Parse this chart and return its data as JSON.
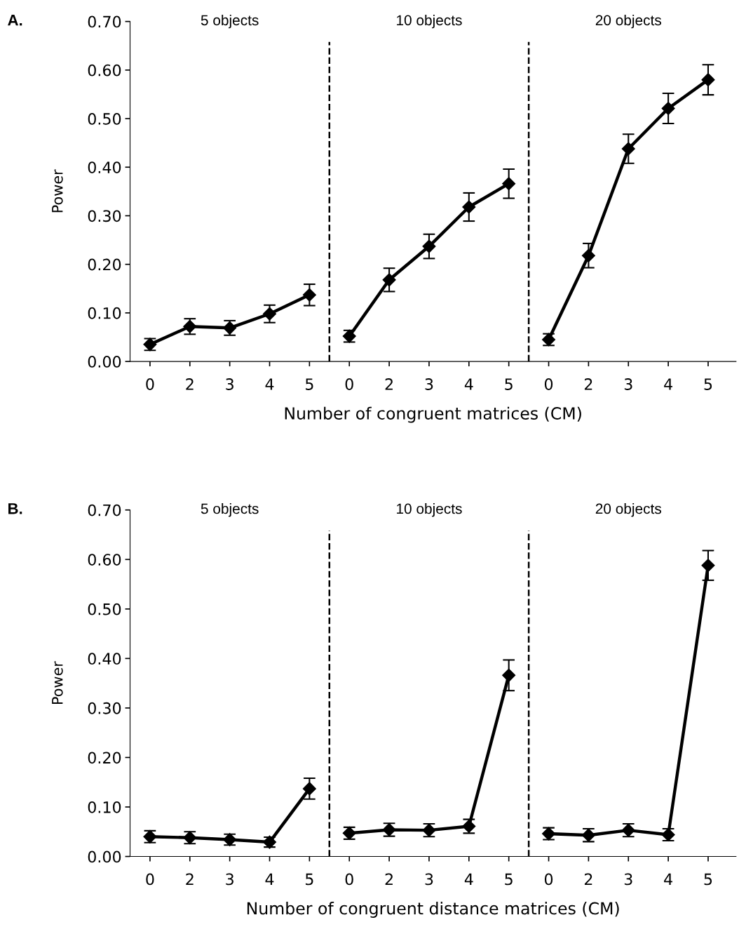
{
  "chart_data": [
    {
      "type": "line",
      "title": "A.",
      "xlabel": "Number of congruent matrices (CM)",
      "ylabel": "Power",
      "categories": [
        "0",
        "2",
        "3",
        "4",
        "5",
        "0",
        "2",
        "3",
        "4",
        "5",
        "0",
        "2",
        "3",
        "4",
        "5"
      ],
      "series": [
        {
          "color": "#000000",
          "values": [
            0.035,
            0.072,
            0.069,
            0.098,
            0.137,
            null,
            null,
            null,
            null,
            null,
            null,
            null,
            null,
            null,
            null
          ],
          "errors": [
            0.012,
            0.016,
            0.015,
            0.018,
            0.022,
            null,
            null,
            null,
            null,
            null,
            null,
            null,
            null,
            null,
            null
          ]
        },
        {
          "color": "#000000",
          "values": [
            null,
            null,
            null,
            null,
            null,
            0.052,
            0.168,
            0.237,
            0.318,
            0.366,
            null,
            null,
            null,
            null,
            null
          ],
          "errors": [
            null,
            null,
            null,
            null,
            null,
            0.012,
            0.024,
            0.025,
            0.029,
            0.03,
            null,
            null,
            null,
            null,
            null
          ]
        },
        {
          "color": "#000000",
          "values": [
            null,
            null,
            null,
            null,
            null,
            null,
            null,
            null,
            null,
            null,
            0.045,
            0.218,
            0.438,
            0.521,
            0.58
          ],
          "errors": [
            null,
            null,
            null,
            null,
            null,
            null,
            null,
            null,
            null,
            null,
            0.012,
            0.025,
            0.03,
            0.031,
            0.031
          ]
        }
      ],
      "annotations": [
        "5 objects",
        "10 objects",
        "20 objects"
      ],
      "ylim": [
        0,
        0.7
      ],
      "yticks": [
        {
          "value": 0,
          "label": "0.00"
        },
        {
          "value": 0.1,
          "label": "0.10"
        },
        {
          "value": 0.2,
          "label": "0.20"
        },
        {
          "value": 0.3,
          "label": "0.30"
        },
        {
          "value": 0.4,
          "label": "0.40"
        },
        {
          "value": 0.5,
          "label": "0.50"
        },
        {
          "value": 0.6,
          "label": "0.60"
        },
        {
          "value": 0.7,
          "label": "0.70"
        }
      ],
      "marker": "diamond",
      "line_style": "solid",
      "grid": false,
      "legend": false
    },
    {
      "type": "line",
      "title": "B.",
      "xlabel": "Number of congruent distance matrices (CM)",
      "ylabel": "Power",
      "categories": [
        "0",
        "2",
        "3",
        "4",
        "5",
        "0",
        "2",
        "3",
        "4",
        "5",
        "0",
        "2",
        "3",
        "4",
        "5"
      ],
      "series": [
        {
          "color": "#000000",
          "values": [
            0.04,
            0.038,
            0.034,
            0.029,
            0.137,
            null,
            null,
            null,
            null,
            null,
            null,
            null,
            null,
            null,
            null
          ],
          "errors": [
            0.012,
            0.012,
            0.011,
            0.01,
            0.021,
            null,
            null,
            null,
            null,
            null,
            null,
            null,
            null,
            null,
            null
          ]
        },
        {
          "color": "#000000",
          "values": [
            null,
            null,
            null,
            null,
            null,
            0.047,
            0.054,
            0.053,
            0.061,
            0.366,
            null,
            null,
            null,
            null,
            null
          ],
          "errors": [
            null,
            null,
            null,
            null,
            null,
            0.012,
            0.013,
            0.013,
            0.014,
            0.031,
            null,
            null,
            null,
            null,
            null
          ]
        },
        {
          "color": "#000000",
          "values": [
            null,
            null,
            null,
            null,
            null,
            null,
            null,
            null,
            null,
            null,
            0.046,
            0.043,
            0.053,
            0.044,
            0.588
          ],
          "errors": [
            null,
            null,
            null,
            null,
            null,
            null,
            null,
            null,
            null,
            null,
            0.012,
            0.013,
            0.013,
            0.012,
            0.03
          ]
        }
      ],
      "annotations": [
        "5 objects",
        "10 objects",
        "20 objects"
      ],
      "ylim": [
        0,
        0.7
      ],
      "yticks": [
        {
          "value": 0,
          "label": "0.00"
        },
        {
          "value": 0.1,
          "label": "0.10"
        },
        {
          "value": 0.2,
          "label": "0.20"
        },
        {
          "value": 0.3,
          "label": "0.30"
        },
        {
          "value": 0.4,
          "label": "0.40"
        },
        {
          "value": 0.5,
          "label": "0.50"
        },
        {
          "value": 0.6,
          "label": "0.60"
        },
        {
          "value": 0.7,
          "label": "0.70"
        }
      ],
      "marker": "diamond",
      "line_style": "solid",
      "grid": false,
      "legend": false
    }
  ]
}
